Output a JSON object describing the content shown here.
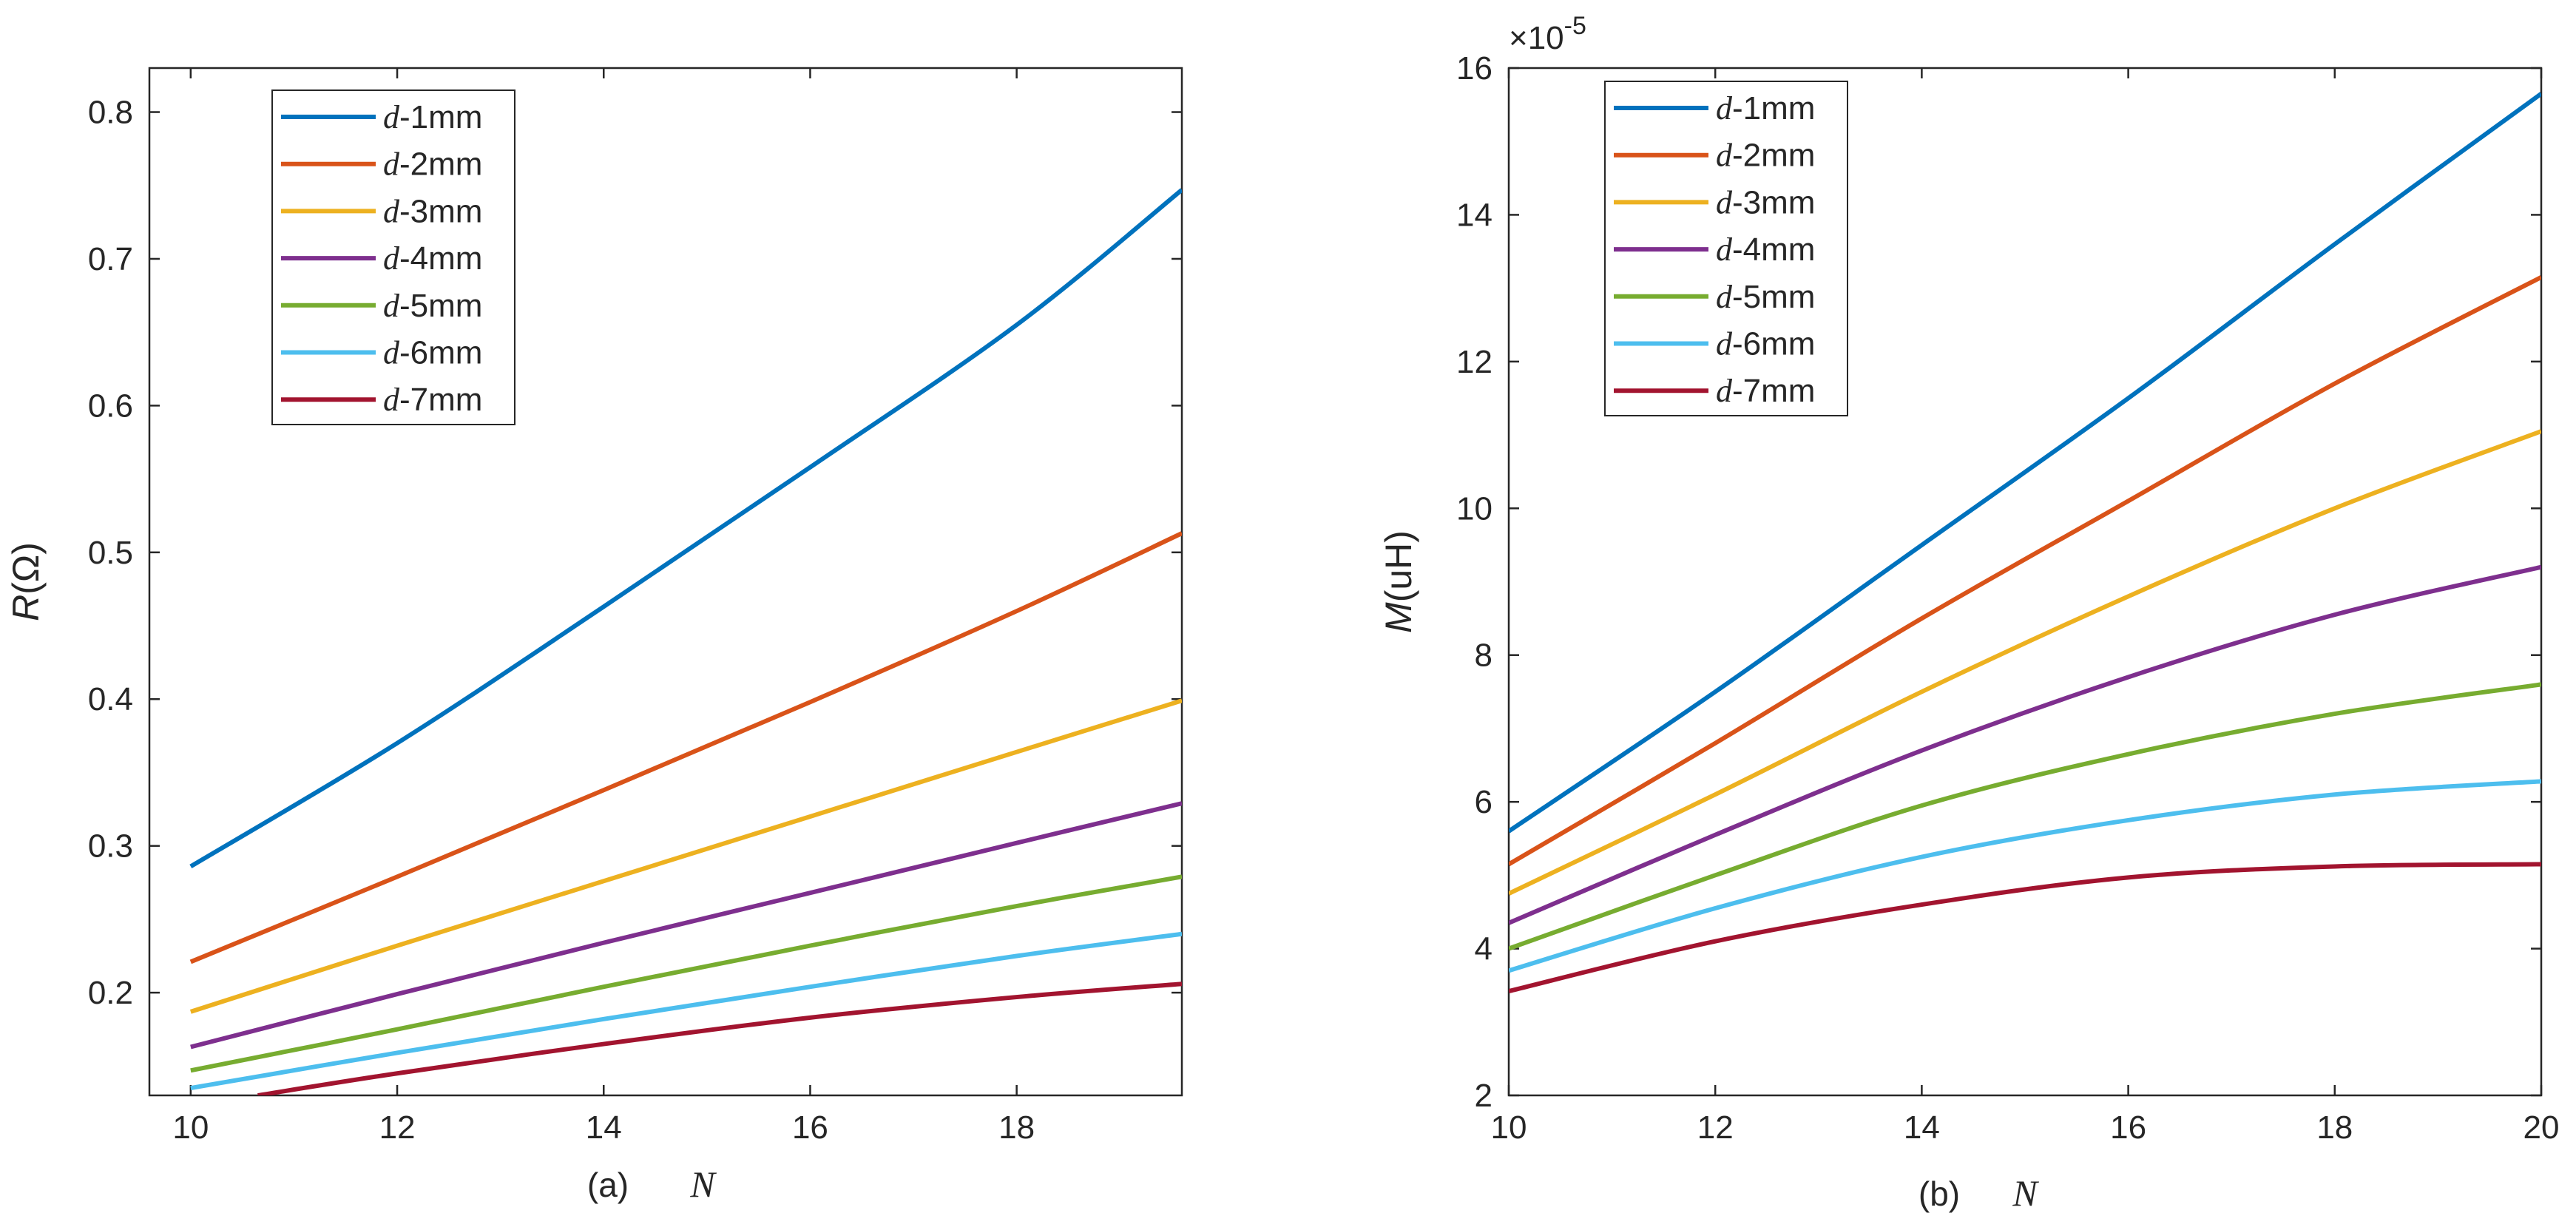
{
  "chart_data": [
    {
      "type": "line",
      "panel_caption": "(a)",
      "xlabel": "N",
      "ylabel_main": "R",
      "ylabel_unit": "(Ω)",
      "xlim": [
        9.6,
        19.6
      ],
      "ylim": [
        0.13,
        0.83
      ],
      "xticks": [
        10,
        12,
        14,
        16,
        18
      ],
      "xtick_labels": [
        "10",
        "12",
        "14",
        "16",
        "18"
      ],
      "yticks": [
        0.2,
        0.3,
        0.4,
        0.5,
        0.6,
        0.7,
        0.8
      ],
      "ytick_labels": [
        "0.2",
        "0.3",
        "0.4",
        "0.5",
        "0.6",
        "0.7",
        "0.8"
      ],
      "legend_position": "top-left",
      "x": [
        10,
        12,
        14,
        16,
        18,
        19.6
      ],
      "series": [
        {
          "name_italic": "d",
          "name_rest": "-1mm",
          "color": "#0072BD",
          "values": [
            0.286,
            0.37,
            0.463,
            0.558,
            0.655,
            0.747
          ]
        },
        {
          "name_italic": "d",
          "name_rest": "-2mm",
          "color": "#D95319",
          "values": [
            0.221,
            0.279,
            0.338,
            0.398,
            0.46,
            0.513
          ]
        },
        {
          "name_italic": "d",
          "name_rest": "-3mm",
          "color": "#EDB120",
          "values": [
            0.187,
            0.232,
            0.276,
            0.32,
            0.364,
            0.399
          ]
        },
        {
          "name_italic": "d",
          "name_rest": "-4mm",
          "color": "#7E2F8E",
          "values": [
            0.163,
            0.199,
            0.234,
            0.268,
            0.302,
            0.329
          ]
        },
        {
          "name_italic": "d",
          "name_rest": "-5mm",
          "color": "#77AC30",
          "values": [
            0.147,
            0.175,
            0.204,
            0.232,
            0.259,
            0.279
          ]
        },
        {
          "name_italic": "d",
          "name_rest": "-6mm",
          "color": "#4DBEEE",
          "values": [
            0.135,
            0.159,
            0.182,
            0.204,
            0.225,
            0.24
          ]
        },
        {
          "name_italic": "d",
          "name_rest": "-7mm",
          "color": "#A2142F",
          "values": [
            null,
            0.145,
            0.165,
            0.183,
            0.197,
            0.206
          ],
          "start": [
            10.65,
            0.13
          ]
        }
      ]
    },
    {
      "type": "line",
      "panel_caption": "(b)",
      "xlabel": "N",
      "ylabel_main": "M",
      "ylabel_unit": "(uH)",
      "exponent_base": "×10",
      "exponent_power": "-5",
      "xlim": [
        10,
        20
      ],
      "ylim": [
        2,
        16
      ],
      "xticks": [
        10,
        12,
        14,
        16,
        18,
        20
      ],
      "xtick_labels": [
        "10",
        "12",
        "14",
        "16",
        "18",
        "20"
      ],
      "yticks": [
        2,
        4,
        6,
        8,
        10,
        12,
        14,
        16
      ],
      "ytick_labels": [
        "2",
        "4",
        "6",
        "8",
        "10",
        "12",
        "14",
        "16"
      ],
      "legend_position": "top-left",
      "x": [
        10,
        12,
        14,
        16,
        18,
        20
      ],
      "series": [
        {
          "name_italic": "d",
          "name_rest": "-1mm",
          "color": "#0072BD",
          "values": [
            5.6,
            7.5,
            9.5,
            11.5,
            13.6,
            15.65
          ]
        },
        {
          "name_italic": "d",
          "name_rest": "-2mm",
          "color": "#D95319",
          "values": [
            5.15,
            6.8,
            8.5,
            10.1,
            11.7,
            13.15
          ]
        },
        {
          "name_italic": "d",
          "name_rest": "-3mm",
          "color": "#EDB120",
          "values": [
            4.75,
            6.1,
            7.5,
            8.8,
            10.0,
            11.05
          ]
        },
        {
          "name_italic": "d",
          "name_rest": "-4mm",
          "color": "#7E2F8E",
          "values": [
            4.35,
            5.55,
            6.7,
            7.7,
            8.55,
            9.2
          ]
        },
        {
          "name_italic": "d",
          "name_rest": "-5mm",
          "color": "#77AC30",
          "values": [
            4.0,
            5.0,
            5.95,
            6.65,
            7.2,
            7.6
          ]
        },
        {
          "name_italic": "d",
          "name_rest": "-6mm",
          "color": "#4DBEEE",
          "values": [
            3.7,
            4.55,
            5.25,
            5.75,
            6.1,
            6.28
          ]
        },
        {
          "name_italic": "d",
          "name_rest": "-7mm",
          "color": "#A2142F",
          "values": [
            3.42,
            4.1,
            4.6,
            4.97,
            5.12,
            5.15
          ]
        }
      ]
    }
  ]
}
